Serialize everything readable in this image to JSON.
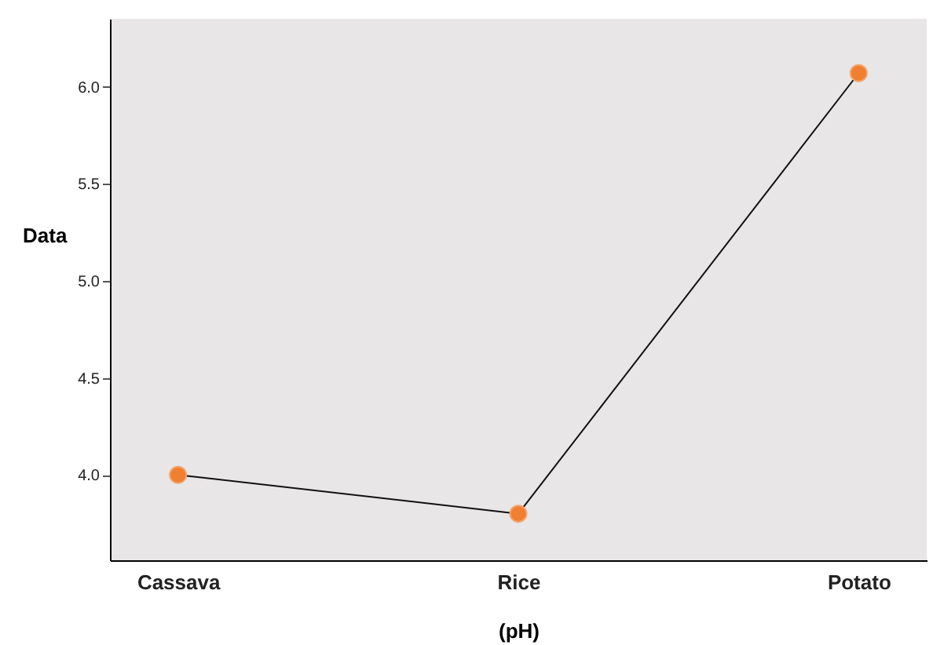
{
  "chart_data": {
    "type": "line",
    "xlabel": "(pH)",
    "ylabel": "Data",
    "categories": [
      "Cassava",
      "Rice",
      "Potato"
    ],
    "series": [
      {
        "color": "#f07f32",
        "values": [
          4.0,
          3.8,
          6.07
        ]
      }
    ],
    "ylim": [
      3.56,
      6.35
    ],
    "yticks": [
      {
        "value": 4,
        "label": "4.0"
      },
      {
        "value": 4.5,
        "label": "4.5"
      },
      {
        "value": 5,
        "label": "5.0"
      },
      {
        "value": 5.5,
        "label": "5.5"
      },
      {
        "value": 6,
        "label": "6.0"
      }
    ],
    "grid": false,
    "marker": "circle",
    "line_style": "solid"
  }
}
